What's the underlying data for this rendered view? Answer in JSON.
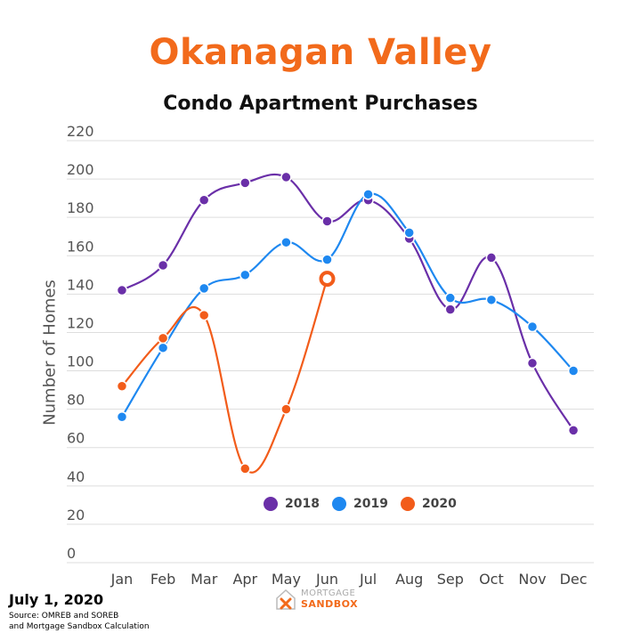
{
  "header": {
    "title": "Okanagan Valley",
    "subtitle": "Condo Apartment Purchases"
  },
  "colors": {
    "accent": "#f26a1b",
    "s2018": "#6a2fa8",
    "s2019": "#1e88f0",
    "s2020": "#f25c1a",
    "grid": "#dddddd"
  },
  "chart_data": {
    "type": "line",
    "title": "Condo Apartment Purchases",
    "xlabel": "",
    "ylabel": "Number of Homes",
    "ylim": [
      0,
      220
    ],
    "yticks": [
      0,
      20,
      40,
      60,
      80,
      100,
      120,
      140,
      160,
      180,
      200,
      220
    ],
    "grid": true,
    "legend_position": "bottom-center",
    "categories": [
      "Jan",
      "Feb",
      "Mar",
      "Apr",
      "May",
      "Jun",
      "Jul",
      "Aug",
      "Sep",
      "Oct",
      "Nov",
      "Dec"
    ],
    "series": [
      {
        "name": "2018",
        "values": [
          142,
          155,
          189,
          198,
          201,
          178,
          189,
          169,
          132,
          159,
          104,
          69
        ]
      },
      {
        "name": "2019",
        "values": [
          76,
          112,
          143,
          150,
          167,
          158,
          192,
          172,
          138,
          137,
          123,
          100
        ]
      },
      {
        "name": "2020",
        "values": [
          92,
          117,
          129,
          49,
          80,
          148,
          null,
          null,
          null,
          null,
          null,
          null
        ]
      }
    ]
  },
  "legend": {
    "items": [
      "2018",
      "2019",
      "2020"
    ]
  },
  "footer": {
    "date": "July 1, 2020",
    "source_line1": "Source: OMREB and SOREB",
    "source_line2": "and Mortgage Sandbox Calculation",
    "logo_top": "MORTGAGE",
    "logo_bottom": "SANDBOX"
  }
}
